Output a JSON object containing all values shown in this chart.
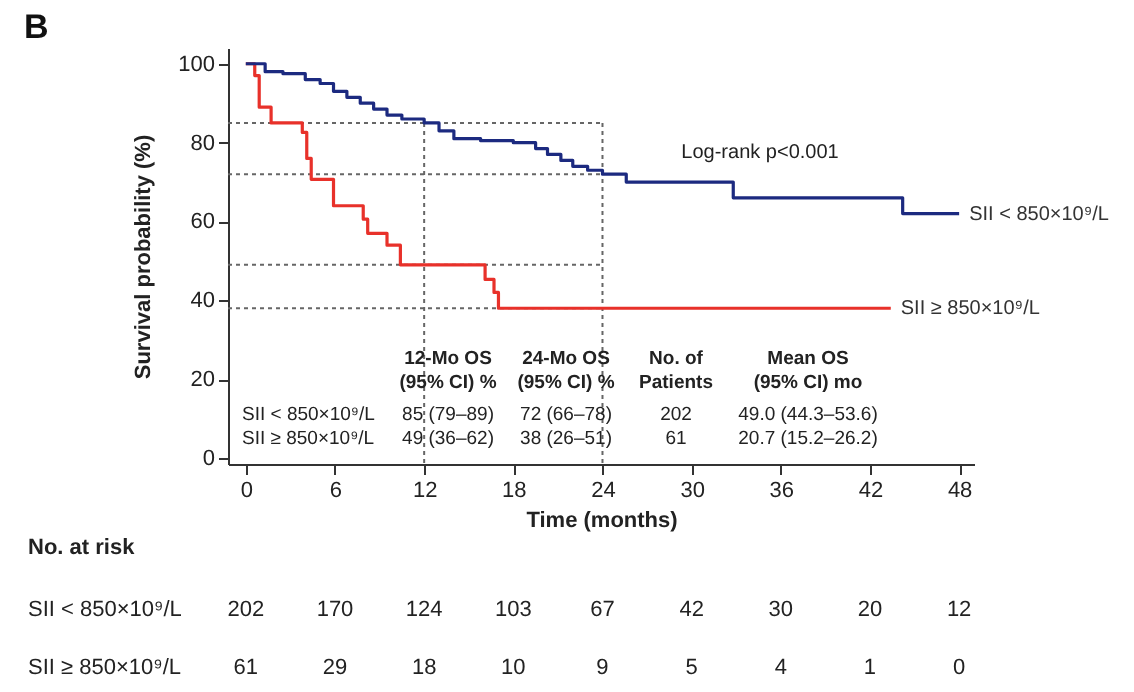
{
  "chart_data": {
    "type": "step",
    "title": "B",
    "xlabel": "Time (months)",
    "ylabel": "Survival probability (%)",
    "xlim": [
      -1.2,
      49
    ],
    "xticks": [
      0,
      6,
      12,
      18,
      24,
      30,
      36,
      42,
      48
    ],
    "ylim": [
      -1.5,
      104
    ],
    "yticks": [
      0,
      20,
      40,
      60,
      80,
      100
    ],
    "grid": false,
    "legend": false,
    "line_style": "solid",
    "marker": "none",
    "series": [
      {
        "name": "SII < 850×10⁹/L",
        "color": "#1c2a80",
        "x": [
          0,
          1.3,
          2.5,
          4,
          5,
          5.9,
          6.8,
          7.7,
          8.6,
          9.5,
          10.5,
          12,
          13,
          14,
          15.8,
          18,
          19.5,
          20.3,
          21.2,
          22,
          23,
          24,
          25.6,
          32.8,
          44.2,
          48
        ],
        "values": [
          100,
          98,
          97.5,
          96,
          95,
          93,
          91.5,
          90,
          88.5,
          87,
          86,
          85,
          83,
          81,
          80.5,
          80,
          78.5,
          77,
          75.5,
          74,
          73,
          72,
          70,
          66,
          62,
          62
        ]
      },
      {
        "name": "SII ≥ 850×10⁹/L",
        "color": "#e8312a",
        "x": [
          0,
          0.6,
          0.9,
          1.7,
          3.8,
          4.1,
          4.4,
          5.9,
          7.9,
          8.2,
          9.5,
          10.4,
          16.1,
          16.7,
          17,
          43.4
        ],
        "values": [
          100,
          97,
          89,
          85,
          82.6,
          76,
          70.7,
          64,
          60.6,
          57,
          54,
          49,
          45.3,
          42,
          38,
          38
        ]
      }
    ],
    "ref_lines": [
      {
        "axis": "y",
        "value": 85,
        "color": "#666666",
        "line_style": "dotted"
      },
      {
        "axis": "y",
        "value": 72,
        "color": "#666666",
        "line_style": "dotted"
      },
      {
        "axis": "y",
        "value": 49,
        "color": "#666666",
        "line_style": "dotted"
      },
      {
        "axis": "y",
        "value": 38,
        "color": "#666666",
        "line_style": "dotted"
      },
      {
        "axis": "x",
        "value": 12,
        "color": "#666666",
        "line_style": "dotted"
      },
      {
        "axis": "x",
        "value": 24,
        "color": "#666666",
        "line_style": "dotted"
      }
    ],
    "annotations": [
      "Log-rank p<0.001",
      "12-Mo OS\n(95% CI) %",
      "24-Mo OS\n(95% CI) %",
      "No. of\nPatients",
      "Mean OS\n(95% CI) mo",
      "SII < 850×10⁹/L",
      "85 (79–89)",
      "72 (66–78)",
      "202",
      "49.0 (44.3–53.6)",
      "SII ≥ 850×10⁹/L",
      "49 (36–62)",
      "38 (26–51)",
      "61",
      "20.7 (15.2–26.2)",
      "No. at risk",
      "SII < 850×10⁹/L",
      "SII ≥ 850×10⁹/L",
      "202",
      "170",
      "124",
      "103",
      "67",
      "42",
      "30",
      "20",
      "12",
      "61",
      "29",
      "18",
      "10",
      "9",
      "5",
      "4",
      "1",
      "0"
    ]
  }
}
